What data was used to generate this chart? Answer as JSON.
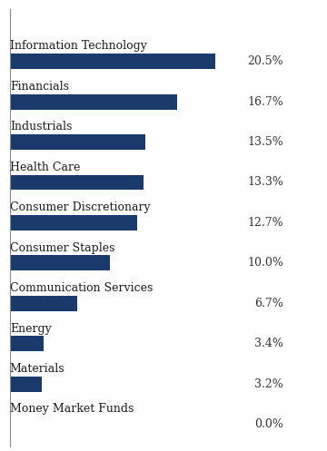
{
  "categories": [
    "Money Market Funds",
    "Materials",
    "Energy",
    "Communication Services",
    "Consumer Staples",
    "Consumer Discretionary",
    "Health Care",
    "Industrials",
    "Financials",
    "Information Technology"
  ],
  "values": [
    0.0,
    3.2,
    3.4,
    6.7,
    10.0,
    12.7,
    13.3,
    13.5,
    16.7,
    20.5
  ],
  "labels": [
    "0.0%",
    "3.2%",
    "3.4%",
    "6.7%",
    "10.0%",
    "12.7%",
    "13.3%",
    "13.5%",
    "16.7%",
    "20.5%"
  ],
  "bar_color": "#1a3a6b",
  "background_color": "#ffffff",
  "label_fontsize": 9.0,
  "category_fontsize": 9.0,
  "value_label_color": "#333333",
  "xlim": [
    0,
    22.5
  ],
  "bar_height": 0.38
}
